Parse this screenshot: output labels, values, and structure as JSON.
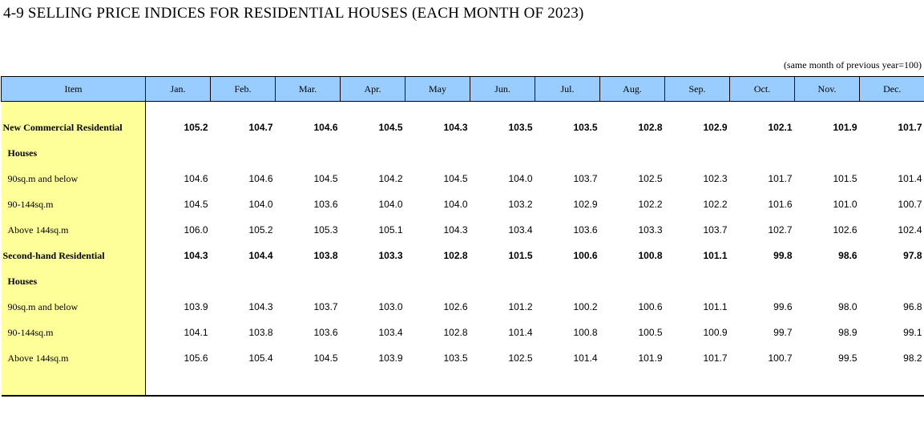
{
  "title": "4-9  SELLING PRICE INDICES FOR RESIDENTIAL HOUSES (EACH MONTH OF 2023)",
  "note": "(same month of previous year=100)",
  "header": {
    "item": "Item",
    "months": [
      "Jan.",
      "Feb.",
      "Mar.",
      "Apr.",
      "May",
      "Jun.",
      "Jul.",
      "Aug.",
      "Sep.",
      "Oct.",
      "Nov.",
      "Dec."
    ]
  },
  "rows": [
    {
      "label": "New Commercial Residential",
      "bold": true,
      "indent": false,
      "values": [
        "105.2",
        "104.7",
        "104.6",
        "104.5",
        "104.3",
        "103.5",
        "103.5",
        "102.8",
        "102.9",
        "102.1",
        "101.9",
        "101.7"
      ]
    },
    {
      "label": "Houses",
      "bold": true,
      "indent": true,
      "values": []
    },
    {
      "label": "90sq.m and below",
      "bold": false,
      "indent": true,
      "values": [
        "104.6",
        "104.6",
        "104.5",
        "104.2",
        "104.5",
        "104.0",
        "103.7",
        "102.5",
        "102.3",
        "101.7",
        "101.5",
        "101.4"
      ]
    },
    {
      "label": "90-144sq.m",
      "bold": false,
      "indent": true,
      "values": [
        "104.5",
        "104.0",
        "103.6",
        "104.0",
        "104.0",
        "103.2",
        "102.9",
        "102.2",
        "102.2",
        "101.6",
        "101.0",
        "100.7"
      ]
    },
    {
      "label": "Above 144sq.m",
      "bold": false,
      "indent": true,
      "values": [
        "106.0",
        "105.2",
        "105.3",
        "105.1",
        "104.3",
        "103.4",
        "103.6",
        "103.3",
        "103.7",
        "102.7",
        "102.6",
        "102.4"
      ]
    },
    {
      "label": "Second-hand Residential",
      "bold": true,
      "indent": false,
      "values": [
        "104.3",
        "104.4",
        "103.8",
        "103.3",
        "102.8",
        "101.5",
        "100.6",
        "100.8",
        "101.1",
        "99.8",
        "98.6",
        "97.8"
      ]
    },
    {
      "label": "Houses",
      "bold": true,
      "indent": true,
      "values": []
    },
    {
      "label": "90sq.m and below",
      "bold": false,
      "indent": true,
      "values": [
        "103.9",
        "104.3",
        "103.7",
        "103.0",
        "102.6",
        "101.2",
        "100.2",
        "100.6",
        "101.1",
        "99.6",
        "98.0",
        "96.8"
      ]
    },
    {
      "label": "90-144sq.m",
      "bold": false,
      "indent": true,
      "values": [
        "104.1",
        "103.8",
        "103.6",
        "103.4",
        "102.8",
        "101.4",
        "100.8",
        "100.5",
        "100.9",
        "99.7",
        "98.9",
        "99.1"
      ]
    },
    {
      "label": "Above 144sq.m",
      "bold": false,
      "indent": true,
      "values": [
        "105.6",
        "105.4",
        "104.5",
        "103.9",
        "103.5",
        "102.5",
        "101.4",
        "101.9",
        "101.7",
        "100.7",
        "99.5",
        "98.2"
      ]
    }
  ]
}
